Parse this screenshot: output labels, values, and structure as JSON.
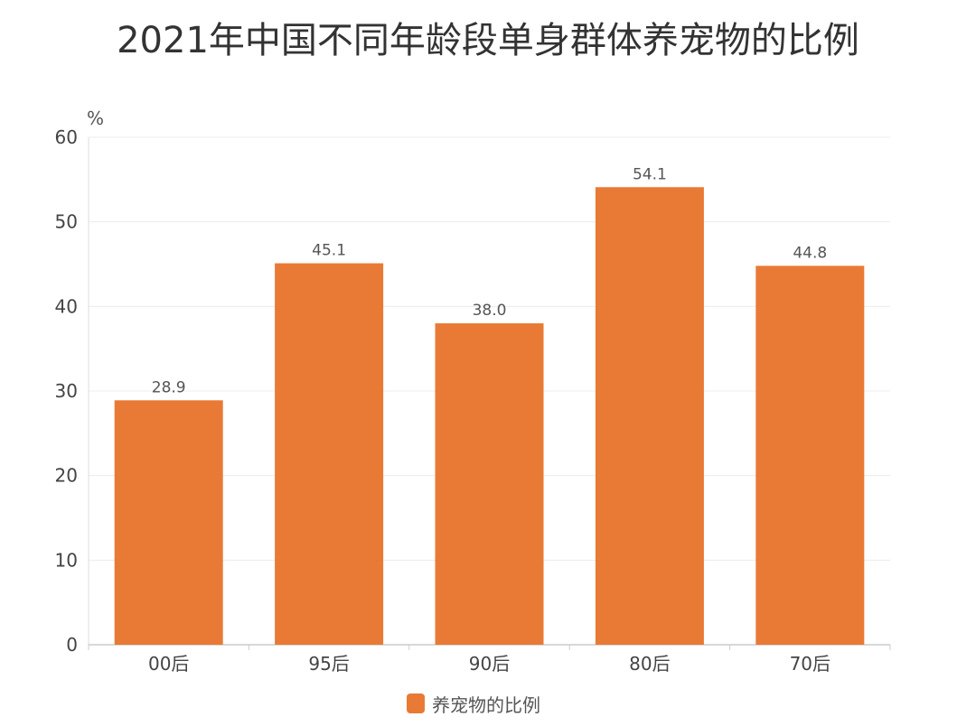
{
  "chart_data": {
    "type": "bar",
    "title": "2021年中国不同年龄段单身群体养宠物的比例",
    "unit_label": "%",
    "categories": [
      "00后",
      "95后",
      "90后",
      "80后",
      "70后"
    ],
    "series": [
      {
        "name": "养宠物的比例",
        "values": [
          28.9,
          45.1,
          38.0,
          54.1,
          44.8
        ],
        "labels": [
          "28.9",
          "45.1",
          "38.0",
          "54.1",
          "44.8"
        ],
        "color": "#E97A35"
      }
    ],
    "ylim": [
      0,
      60
    ],
    "yticks": [
      0,
      10,
      20,
      30,
      40,
      50,
      60
    ],
    "grid": true,
    "legend_position": "bottom-center"
  }
}
